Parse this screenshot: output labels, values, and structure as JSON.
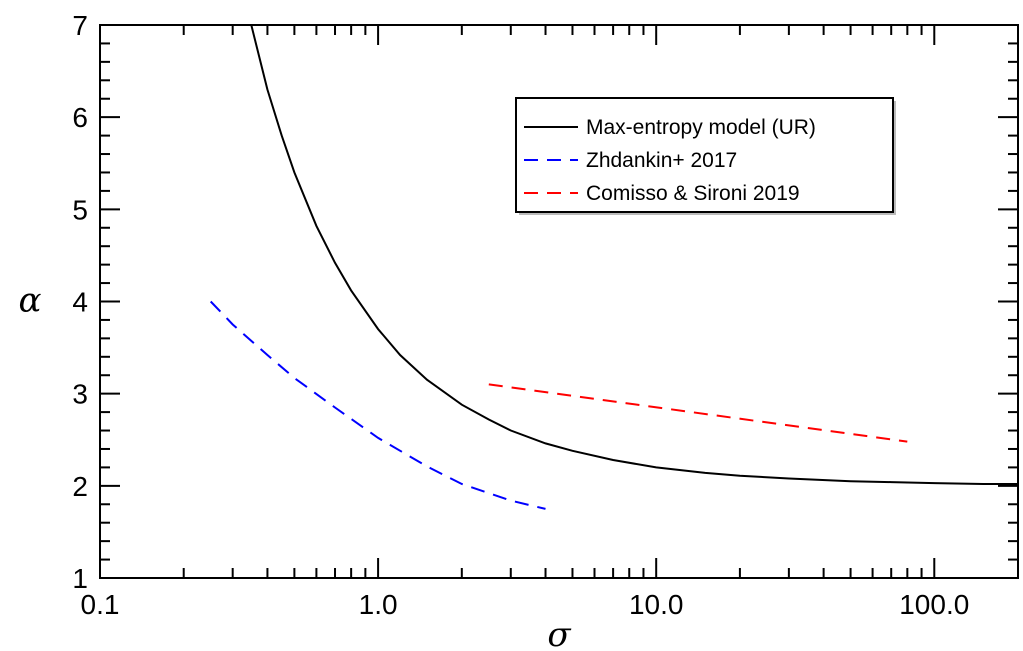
{
  "chart_data": {
    "type": "line",
    "title": "",
    "xlabel": "σ",
    "ylabel": "α",
    "xscale": "log",
    "xlim": [
      0.1,
      200
    ],
    "ylim": [
      1,
      7
    ],
    "grid": false,
    "legend_position": "top-right",
    "x_tick_labels": [
      {
        "value": 0.1,
        "label": "0.1"
      },
      {
        "value": 1,
        "label": "1.0"
      },
      {
        "value": 10,
        "label": "10.0"
      },
      {
        "value": 100,
        "label": "100.0"
      }
    ],
    "y_tick_labels": [
      {
        "value": 1,
        "label": "1"
      },
      {
        "value": 2,
        "label": "2"
      },
      {
        "value": 3,
        "label": "3"
      },
      {
        "value": 4,
        "label": "4"
      },
      {
        "value": 5,
        "label": "5"
      },
      {
        "value": 6,
        "label": "6"
      },
      {
        "value": 7,
        "label": "7"
      }
    ],
    "series": [
      {
        "name": "Max-entropy model (UR)",
        "color": "#000000",
        "dash": "solid",
        "x": [
          0.35,
          0.4,
          0.45,
          0.5,
          0.6,
          0.7,
          0.8,
          1.0,
          1.2,
          1.5,
          2.0,
          2.5,
          3.0,
          4.0,
          5.0,
          7.0,
          10.0,
          15.0,
          20.0,
          30.0,
          50.0,
          70.0,
          100.0,
          150.0,
          200.0
        ],
        "y": [
          7.0,
          6.3,
          5.8,
          5.4,
          4.82,
          4.42,
          4.12,
          3.7,
          3.42,
          3.15,
          2.88,
          2.72,
          2.6,
          2.46,
          2.38,
          2.28,
          2.2,
          2.14,
          2.11,
          2.08,
          2.05,
          2.04,
          2.03,
          2.02,
          2.02
        ]
      },
      {
        "name": "Zhdankin+ 2017",
        "color": "#0000ff",
        "dash": "dashed",
        "x": [
          0.25,
          0.3,
          0.4,
          0.5,
          0.7,
          1.0,
          1.5,
          2.0,
          3.0,
          4.0
        ],
        "y": [
          4.0,
          3.75,
          3.42,
          3.17,
          2.85,
          2.52,
          2.21,
          2.02,
          1.84,
          1.75
        ]
      },
      {
        "name": "Comisso & Sironi 2019",
        "color": "#ff0000",
        "dash": "dashed",
        "x": [
          2.5,
          80.0
        ],
        "y": [
          3.1,
          2.48
        ]
      }
    ]
  }
}
